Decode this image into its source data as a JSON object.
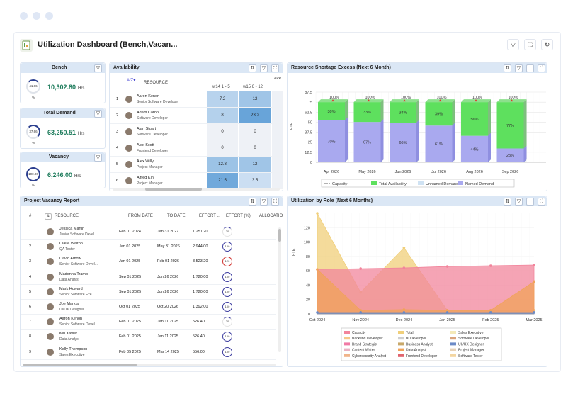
{
  "app": {
    "title": "Utilization Dashboard (Bench,Vacan..."
  },
  "header_buttons": [
    "filter-icon",
    "expand-icon",
    "refresh-icon"
  ],
  "kpis": [
    {
      "title": "Bench",
      "value": "10,302.80",
      "unit": "Hrs",
      "percent": "41.86 %"
    },
    {
      "title": "Total Demand",
      "value": "63,250.51",
      "unit": "Hrs",
      "percent": "37.66 %"
    },
    {
      "title": "Vacancy",
      "value": "6,246.00",
      "unit": "Hrs",
      "percent": "100.00 %"
    }
  ],
  "availability": {
    "title": "Availability",
    "resource_header": "RESOURCE",
    "weeks": [
      "w14 1 - 5",
      "w15 6 - 12",
      "APR"
    ],
    "rows": [
      {
        "n": "1",
        "name": "Aaron Kenon",
        "role": "Senior Software Developer",
        "w14": "7.2",
        "w15": "12"
      },
      {
        "n": "2",
        "name": "Adam Caron",
        "role": "Software Developer",
        "w14": "8",
        "w15": "23.2"
      },
      {
        "n": "3",
        "name": "Alan Stuart",
        "role": "Software Developer",
        "w14": "0",
        "w15": "0"
      },
      {
        "n": "4",
        "name": "Alex Scott",
        "role": "Frontend Developer",
        "w14": "0",
        "w15": "0"
      },
      {
        "n": "5",
        "name": "Alex Willy",
        "role": "Project Manager",
        "w14": "12.8",
        "w15": "12"
      },
      {
        "n": "6",
        "name": "Alfred Kin",
        "role": "Project Manager",
        "w14": "21.5",
        "w15": "3.5"
      }
    ]
  },
  "shortage": {
    "title": "Resource Shortage  Excess (Next 6 Month)",
    "ylabel": "FTE",
    "legend": [
      "Capacity",
      "Total Availability",
      "Unnamed Demand",
      "Named Demand"
    ]
  },
  "vacancy": {
    "title": "Project Vacancy Report",
    "headers": [
      "#",
      "RESOURCE",
      "FROM DATE",
      "TO DATE",
      "EFFORT ...",
      "EFFORT (%)",
      "ALLOCATIO"
    ],
    "rows": [
      {
        "n": "1",
        "name": "Jessica Martin",
        "role": "Junior Software Devel...",
        "from": "Feb 01 2024",
        "to": "Jan 31 2027",
        "effort": "1,251.20",
        "pct": "20"
      },
      {
        "n": "2",
        "name": "Claire Walton",
        "role": "QA Tester",
        "from": "Jan 01 2025",
        "to": "May 31 2026",
        "effort": "2,944.00",
        "pct": "100"
      },
      {
        "n": "3",
        "name": "David Amow",
        "role": "Senior Software Devel...",
        "from": "Jan 01 2025",
        "to": "Feb 01 2026",
        "effort": "3,523.20",
        "pct": "120"
      },
      {
        "n": "4",
        "name": "Madonna Tramp",
        "role": "Data Analyst",
        "from": "Sep 01 2025",
        "to": "Jun 26 2026",
        "effort": "1,720.00",
        "pct": "100"
      },
      {
        "n": "5",
        "name": "Mark Howard",
        "role": "Senior Software Exe...",
        "from": "Sep 01 2025",
        "to": "Jun 26 2026",
        "effort": "1,720.00",
        "pct": "100"
      },
      {
        "n": "6",
        "name": "Joe Markus",
        "role": "UI/UX Designer",
        "from": "Oct 01 2025",
        "to": "Oct 20 2026",
        "effort": "1,392.00",
        "pct": "100"
      },
      {
        "n": "7",
        "name": "Aaron Kenon",
        "role": "Senior Software Devel...",
        "from": "Feb 01 2025",
        "to": "Jan 11 2025",
        "effort": "526.40",
        "pct": "20"
      },
      {
        "n": "8",
        "name": "Kai Xavier",
        "role": "Data Analyst",
        "from": "Feb 01 2025",
        "to": "Jan 11 2025",
        "effort": "526.40",
        "pct": "100"
      },
      {
        "n": "9",
        "name": "Kelly Thompson",
        "role": "Sales Executive",
        "from": "Feb 05 2025",
        "to": "Mar 14 2025",
        "effort": "556.00",
        "pct": "100"
      }
    ]
  },
  "utilization": {
    "title": "Utilization by Role (Next 6 Months)",
    "ylabel": "FTE",
    "legend": [
      {
        "name": "Capacity",
        "color": "#f2859c"
      },
      {
        "name": "Total",
        "color": "#f0cf7a"
      },
      {
        "name": "Sales Executive",
        "color": "#f4e9b8"
      },
      {
        "name": "Backend Developer",
        "color": "#f6c98a"
      },
      {
        "name": "BI Developer",
        "color": "#cfcfcf"
      },
      {
        "name": "Software Developer",
        "color": "#d9a37a"
      },
      {
        "name": "Brand Strategist",
        "color": "#f07aa5"
      },
      {
        "name": "Business Analyst",
        "color": "#c8a86a"
      },
      {
        "name": "UI /UX Designer",
        "color": "#6b8ac7"
      },
      {
        "name": "Content Writer",
        "color": "#e9b2c2"
      },
      {
        "name": "Data Analyst",
        "color": "#f0a35a"
      },
      {
        "name": "Project Manager",
        "color": "#e7d2b8"
      },
      {
        "name": "Cybersecurity Analyst",
        "color": "#f0b48a"
      },
      {
        "name": "Frontend Developer",
        "color": "#e0646e"
      },
      {
        "name": "Software Tester",
        "color": "#f3d6a2"
      }
    ]
  },
  "chart_data": [
    {
      "type": "bar",
      "title": "Resource Shortage  Excess (Next 6 Month)",
      "ylabel": "FTE",
      "ylim": [
        0,
        87.5
      ],
      "yticks": [
        0,
        12.5,
        25,
        37.5,
        50,
        62.5,
        75,
        87.5
      ],
      "categories": [
        "Apr 2026",
        "May 2026",
        "Jun 2026",
        "Jul 2026",
        "Aug 2026",
        "Sep 2026"
      ],
      "series": [
        {
          "name": "Named Demand",
          "values": [
            70,
            67,
            66,
            61,
            44,
            23
          ],
          "labels": [
            "70%",
            "67%",
            "66%",
            "61%",
            "44%",
            "23%"
          ],
          "color": "#a9a9ef"
        },
        {
          "name": "Total Availability",
          "values": [
            30,
            33,
            34,
            39,
            56,
            77
          ],
          "labels": [
            "30%",
            "33%",
            "34%",
            "39%",
            "56%",
            "77%"
          ],
          "color": "#5ee05e"
        },
        {
          "name": "Capacity",
          "values": [
            100,
            100,
            100,
            100,
            100,
            100
          ],
          "labels": [
            "100%",
            "100%",
            "100%",
            "100%",
            "100%",
            "100%"
          ],
          "color": "#e0362b"
        }
      ],
      "bar_totals": [
        75,
        75,
        75,
        75,
        75,
        75
      ],
      "legend": "bottom"
    },
    {
      "type": "area",
      "title": "Utilization by Role (Next 6 Months)",
      "ylabel": "FTE",
      "ylim": [
        0,
        140
      ],
      "yticks": [
        0,
        20,
        40,
        60,
        80,
        100,
        120
      ],
      "x": [
        "Oct 2024",
        "Nov 2024",
        "Dec 2024",
        "Jan 2025",
        "Feb 2025",
        "Mar 2025"
      ],
      "series": [
        {
          "name": "Total",
          "values": [
            140,
            30,
            92,
            5,
            5,
            5
          ],
          "color": "#f0cf7a"
        },
        {
          "name": "Capacity",
          "values": [
            62,
            63,
            64,
            66,
            67,
            68
          ],
          "color": "#f2859c"
        },
        {
          "name": "Data Analyst",
          "values": [
            62,
            5,
            6,
            5,
            5,
            45
          ],
          "color": "#f0a35a"
        },
        {
          "name": "UI /UX Designer",
          "values": [
            2,
            2,
            2,
            2,
            2,
            2
          ],
          "color": "#6b8ac7"
        }
      ],
      "legend": "bottom"
    }
  ]
}
